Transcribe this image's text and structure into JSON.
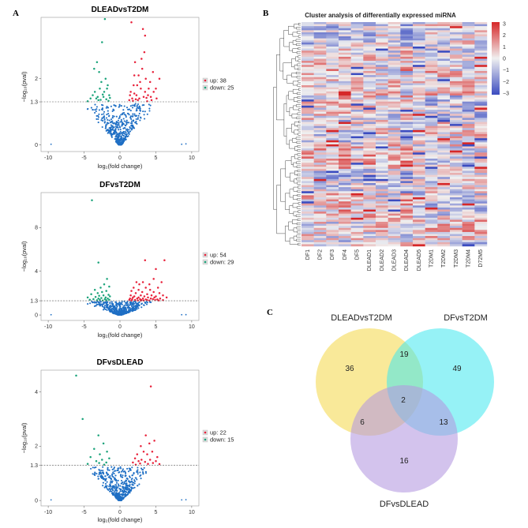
{
  "panel_letters": [
    "A",
    "B",
    "C"
  ],
  "chart_data": [
    {
      "type": "scatter",
      "title": "DLEADvsT2DM",
      "xlabel": "log₂(fold change)",
      "ylabel": "−log₁₀(pval)",
      "xlim": [
        -11,
        11
      ],
      "ylim": [
        -0.2,
        3.85
      ],
      "xticks": [
        "-10",
        "-5",
        "0",
        "5",
        "10"
      ],
      "yticks": [
        {
          "value": 0,
          "label": "0"
        },
        {
          "value": 1.3,
          "label": "1.3"
        },
        {
          "value": 2,
          "label": "2"
        }
      ],
      "threshold": 1.3,
      "legend": {
        "up": "up: 38",
        "down": "down: 25"
      },
      "colors": {
        "up": "#e8213a",
        "down": "#1aa37a",
        "ns": "#1f6fc4"
      },
      "up_points": [
        [
          1.6,
          3.7
        ],
        [
          3.5,
          3.3
        ],
        [
          3.2,
          3.5
        ],
        [
          2.1,
          2.5
        ],
        [
          2.6,
          2.1
        ],
        [
          3.1,
          2.3
        ],
        [
          3.6,
          2.0
        ],
        [
          4.2,
          1.9
        ],
        [
          1.9,
          1.8
        ],
        [
          2.9,
          1.7
        ],
        [
          4.7,
          1.6
        ],
        [
          2.3,
          1.5
        ],
        [
          3.3,
          1.45
        ],
        [
          3.9,
          1.5
        ],
        [
          1.7,
          1.4
        ],
        [
          2.5,
          1.35
        ],
        [
          4.4,
          1.35
        ],
        [
          5.1,
          1.4
        ],
        [
          1.4,
          1.5
        ],
        [
          2.8,
          1.9
        ],
        [
          3.5,
          1.6
        ],
        [
          5.5,
          2.0
        ],
        [
          1.5,
          1.6
        ],
        [
          2.0,
          2.1
        ],
        [
          3.0,
          2.6
        ],
        [
          2.2,
          1.38
        ],
        [
          3.7,
          1.42
        ],
        [
          1.8,
          1.33
        ],
        [
          4.0,
          1.7
        ],
        [
          2.4,
          1.8
        ],
        [
          3.4,
          2.8
        ],
        [
          1.3,
          1.35
        ],
        [
          2.7,
          1.4
        ],
        [
          4.6,
          2.2
        ],
        [
          5.0,
          1.7
        ],
        [
          3.8,
          1.32
        ],
        [
          2.0,
          1.55
        ],
        [
          4.3,
          1.45
        ]
      ],
      "down_points": [
        [
          -2.1,
          3.8
        ],
        [
          -2.5,
          3.1
        ],
        [
          -3.2,
          2.5
        ],
        [
          -2.0,
          2.0
        ],
        [
          -1.7,
          1.8
        ],
        [
          -2.8,
          1.7
        ],
        [
          -3.5,
          1.6
        ],
        [
          -1.5,
          1.5
        ],
        [
          -2.3,
          1.45
        ],
        [
          -4.1,
          1.4
        ],
        [
          -1.9,
          1.38
        ],
        [
          -3.0,
          1.35
        ],
        [
          -2.6,
          1.9
        ],
        [
          -3.8,
          1.5
        ],
        [
          -1.4,
          1.42
        ],
        [
          -2.9,
          2.2
        ],
        [
          -3.3,
          1.4
        ],
        [
          -1.6,
          1.33
        ],
        [
          -2.2,
          1.6
        ],
        [
          -4.5,
          1.32
        ],
        [
          -3.6,
          2.3
        ],
        [
          -2.4,
          1.52
        ],
        [
          -1.8,
          1.7
        ],
        [
          -3.1,
          1.45
        ],
        [
          -2.7,
          1.36
        ]
      ],
      "ns_points": []
    },
    {
      "type": "scatter",
      "title": "DFvsT2DM",
      "xlabel": "log₂(fold change)",
      "ylabel": "−log₁₀(pval)",
      "xlim": [
        -11,
        11
      ],
      "ylim": [
        -0.5,
        11.2
      ],
      "xticks": [
        "-10",
        "-5",
        "0",
        "5",
        "10"
      ],
      "yticks": [
        {
          "value": 0,
          "label": "0"
        },
        {
          "value": 1.3,
          "label": "1.3"
        },
        {
          "value": 4,
          "label": "4"
        },
        {
          "value": 8,
          "label": "8"
        }
      ],
      "threshold": 1.3,
      "legend": {
        "up": "up: 54",
        "down": "down: 29"
      },
      "colors": {
        "up": "#e8213a",
        "down": "#1aa37a",
        "ns": "#1f6fc4"
      },
      "up_points": [
        [
          3.5,
          5.0
        ],
        [
          6.2,
          5.0
        ],
        [
          5.0,
          4.2
        ],
        [
          4.7,
          3.3
        ],
        [
          2.3,
          3.0
        ],
        [
          3.2,
          3.0
        ],
        [
          5.8,
          3.0
        ],
        [
          2.7,
          2.8
        ],
        [
          4.1,
          2.8
        ],
        [
          1.9,
          2.5
        ],
        [
          3.6,
          2.5
        ],
        [
          2.6,
          2.3
        ],
        [
          4.2,
          2.3
        ],
        [
          5.3,
          2.5
        ],
        [
          1.6,
          2.2
        ],
        [
          3.1,
          2.1
        ],
        [
          4.7,
          2.1
        ],
        [
          2.2,
          2.0
        ],
        [
          3.8,
          1.9
        ],
        [
          5.5,
          2.0
        ],
        [
          1.5,
          1.8
        ],
        [
          2.9,
          1.8
        ],
        [
          4.4,
          1.8
        ],
        [
          6.0,
          1.8
        ],
        [
          2.0,
          1.7
        ],
        [
          3.4,
          1.7
        ],
        [
          5.0,
          1.7
        ],
        [
          1.8,
          1.6
        ],
        [
          2.6,
          1.6
        ],
        [
          3.9,
          1.6
        ],
        [
          4.8,
          1.6
        ],
        [
          6.5,
          1.6
        ],
        [
          1.4,
          1.5
        ],
        [
          2.4,
          1.5
        ],
        [
          3.2,
          1.5
        ],
        [
          4.3,
          1.5
        ],
        [
          5.6,
          1.5
        ],
        [
          1.7,
          1.45
        ],
        [
          2.8,
          1.45
        ],
        [
          3.6,
          1.42
        ],
        [
          4.6,
          1.45
        ],
        [
          5.2,
          1.42
        ],
        [
          1.3,
          1.38
        ],
        [
          2.1,
          1.38
        ],
        [
          3.0,
          1.36
        ],
        [
          3.8,
          1.36
        ],
        [
          4.9,
          1.38
        ],
        [
          6.0,
          1.36
        ],
        [
          1.6,
          1.33
        ],
        [
          2.5,
          1.33
        ],
        [
          3.3,
          1.32
        ],
        [
          4.1,
          1.32
        ],
        [
          5.4,
          1.32
        ],
        [
          2.9,
          1.31
        ]
      ],
      "down_points": [
        [
          -3.9,
          10.5
        ],
        [
          -3.0,
          4.8
        ],
        [
          -1.8,
          3.3
        ],
        [
          -2.2,
          2.8
        ],
        [
          -1.5,
          2.6
        ],
        [
          -2.7,
          2.5
        ],
        [
          -3.5,
          2.3
        ],
        [
          -1.9,
          2.2
        ],
        [
          -2.5,
          2.1
        ],
        [
          -3.1,
          2.0
        ],
        [
          -4.0,
          1.9
        ],
        [
          -1.6,
          1.85
        ],
        [
          -2.3,
          1.8
        ],
        [
          -2.9,
          1.75
        ],
        [
          -1.4,
          1.7
        ],
        [
          -3.4,
          1.65
        ],
        [
          -2.0,
          1.6
        ],
        [
          -4.5,
          1.6
        ],
        [
          -2.6,
          1.55
        ],
        [
          -1.7,
          1.5
        ],
        [
          -3.0,
          1.5
        ],
        [
          -2.1,
          1.45
        ],
        [
          -3.7,
          1.45
        ],
        [
          -1.5,
          1.4
        ],
        [
          -2.8,
          1.4
        ],
        [
          -4.2,
          1.4
        ],
        [
          -1.9,
          1.35
        ],
        [
          -3.2,
          1.35
        ],
        [
          -2.4,
          1.32
        ]
      ],
      "ns_points": []
    },
    {
      "type": "scatter",
      "title": "DFvsDLEAD",
      "xlabel": "log₂(fold change)",
      "ylabel": "−log₁₀(pval)",
      "xlim": [
        -11,
        11
      ],
      "ylim": [
        -0.2,
        4.8
      ],
      "xticks": [
        "-10",
        "-5",
        "0",
        "5",
        "10"
      ],
      "yticks": [
        {
          "value": 0,
          "label": "0"
        },
        {
          "value": 1.3,
          "label": "1.3"
        },
        {
          "value": 2,
          "label": "2"
        },
        {
          "value": 4,
          "label": "4"
        }
      ],
      "threshold": 1.3,
      "legend": {
        "up": "up: 22",
        "down": "down: 15"
      },
      "colors": {
        "up": "#e8213a",
        "down": "#1aa37a",
        "ns": "#1f6fc4"
      },
      "up_points": [
        [
          4.3,
          4.2
        ],
        [
          3.6,
          2.4
        ],
        [
          4.8,
          2.2
        ],
        [
          4.1,
          2.1
        ],
        [
          2.9,
          2.0
        ],
        [
          3.3,
          1.8
        ],
        [
          4.5,
          1.8
        ],
        [
          2.4,
          1.7
        ],
        [
          3.8,
          1.7
        ],
        [
          5.2,
          1.6
        ],
        [
          2.1,
          1.55
        ],
        [
          3.0,
          1.5
        ],
        [
          4.2,
          1.5
        ],
        [
          5.0,
          1.45
        ],
        [
          2.6,
          1.45
        ],
        [
          3.5,
          1.42
        ],
        [
          1.8,
          1.4
        ],
        [
          4.6,
          1.38
        ],
        [
          2.8,
          1.36
        ],
        [
          3.9,
          1.35
        ],
        [
          5.5,
          1.34
        ],
        [
          2.2,
          1.32
        ]
      ],
      "down_points": [
        [
          -6.1,
          4.6
        ],
        [
          -5.2,
          3.0
        ],
        [
          -3.0,
          2.4
        ],
        [
          -2.3,
          2.1
        ],
        [
          -3.6,
          1.9
        ],
        [
          -1.8,
          1.8
        ],
        [
          -2.8,
          1.7
        ],
        [
          -4.1,
          1.6
        ],
        [
          -1.5,
          1.55
        ],
        [
          -2.5,
          1.5
        ],
        [
          -3.3,
          1.45
        ],
        [
          -1.9,
          1.4
        ],
        [
          -2.9,
          1.38
        ],
        [
          -4.5,
          1.35
        ],
        [
          -2.2,
          1.32
        ]
      ],
      "ns_points": []
    },
    {
      "type": "heatmap",
      "title": "Cluster analysis of differentially expressed miRNA",
      "columns": [
        "DF1",
        "DF2",
        "DF3",
        "DF4",
        "DF5",
        "DLEAD1",
        "DLEAD2",
        "DLEAD3",
        "DLEAD4",
        "DLEAD5",
        "T2DM1",
        "T2DM2",
        "T2DM3",
        "T2DM4",
        "D72M5"
      ],
      "color_scale": {
        "min": -3,
        "max": 3,
        "low": "#3b4cc0",
        "mid": "#f0f0f0",
        "high": "#d62728"
      },
      "legend_ticks": [
        "3",
        "2",
        "1",
        "0",
        "−1",
        "−2",
        "−3"
      ],
      "n_rows": 110
    },
    {
      "type": "venn",
      "sets": [
        "DLEADvsT2DM",
        "DFvsT2DM",
        "DFvsDLEAD"
      ],
      "colors": [
        "#f5dc5a",
        "#3fe8ee",
        "#b497e0"
      ],
      "regions": {
        "DLEADvsT2DM_only": "36",
        "DFvsT2DM_only": "49",
        "DFvsDLEAD_only": "16",
        "DLEADvsT2DM_DFvsT2DM": "19",
        "DLEADvsT2DM_DFvsDLEAD": "6",
        "DFvsT2DM_DFvsDLEAD": "13",
        "all_three": "2"
      }
    }
  ]
}
